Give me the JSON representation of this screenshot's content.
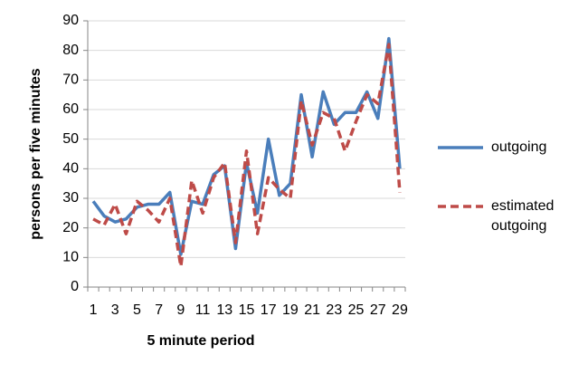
{
  "chart_data": {
    "type": "line",
    "x_label": "5 minute period",
    "y_label": "persons per five minutes",
    "categories": [
      1,
      null,
      3,
      null,
      5,
      null,
      7,
      null,
      9,
      null,
      11,
      null,
      13,
      null,
      15,
      null,
      17,
      null,
      19,
      null,
      21,
      null,
      23,
      null,
      25,
      null,
      27,
      null,
      29
    ],
    "series": [
      {
        "name": "outgoing",
        "color": "#4a7ebb",
        "dashed": false,
        "values": [
          29,
          24,
          22,
          23,
          27,
          28,
          28,
          32,
          11,
          29,
          28,
          38,
          41,
          13,
          42,
          25,
          50,
          31,
          35,
          65,
          44,
          66,
          55,
          59,
          59,
          66,
          57,
          84,
          40
        ]
      },
      {
        "name": "estimated outgoing",
        "color": "#be4b48",
        "dashed": true,
        "values": [
          23,
          21,
          28,
          18,
          29,
          26,
          22,
          30,
          7,
          36,
          25,
          37,
          42,
          15,
          46,
          18,
          37,
          33,
          30,
          63,
          48,
          59,
          57,
          46,
          56,
          65,
          62,
          82,
          32
        ]
      }
    ],
    "ylim": [
      0,
      90
    ],
    "yticks": [
      0,
      10,
      20,
      30,
      40,
      50,
      60,
      70,
      80,
      90
    ],
    "grid": true,
    "legend": "right"
  }
}
